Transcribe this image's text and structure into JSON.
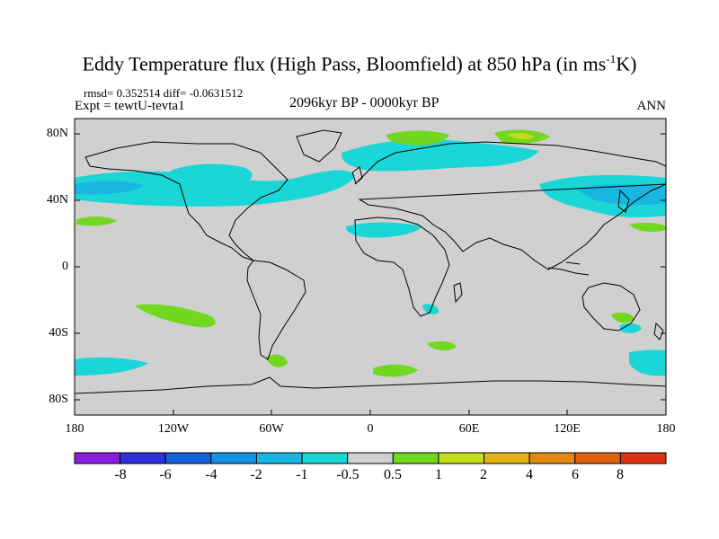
{
  "title_main": "Eddy Temperature flux (High Pass, Bloomfield) at 850 hPa (in ms",
  "title_sup": "-1",
  "title_end": "K)",
  "stats": "rmsd= 0.352514 diff= -0.0631512",
  "experiment": "Expt = tewtU-tevta1",
  "period": "2096kyr BP - 0000kyr BP",
  "season": "ANN",
  "lon_ticks": [
    "180",
    "120W",
    "60W",
    "0",
    "60E",
    "120E",
    "180"
  ],
  "lat_ticks": [
    "80N",
    "40N",
    "0",
    "40S",
    "80S"
  ],
  "colorbar": {
    "labels": [
      "-8",
      "-6",
      "-4",
      "-2",
      "-1",
      "-0.5",
      "0.5",
      "1",
      "2",
      "4",
      "6",
      "8"
    ],
    "colors": [
      "#8a1fe0",
      "#2d2fd8",
      "#1461d9",
      "#1690e0",
      "#18b6e0",
      "#1ad6d6",
      "#d0d0d0",
      "#72d81f",
      "#c4dc1a",
      "#e0b414",
      "#e08a12",
      "#e0620e",
      "#dc3212"
    ]
  },
  "colors": {
    "background": "#d0d0d0",
    "negative_light": "#1ad6d6",
    "negative_mid": "#18b6e0",
    "positive_light": "#72d81f",
    "positive_mid": "#c4dc1a"
  }
}
